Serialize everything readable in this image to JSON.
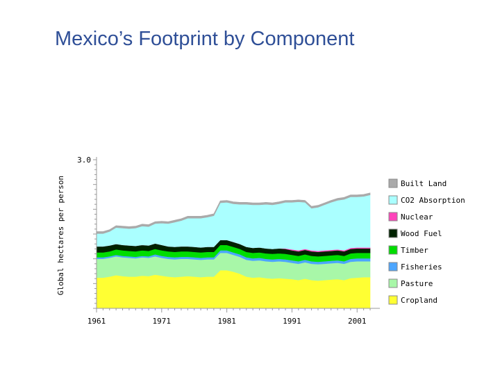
{
  "title": "Mexico’s Footprint by Component",
  "chart_data": {
    "type": "area",
    "stacked": true,
    "title": "Mexico’s Footprint by Component",
    "xlabel": "",
    "ylabel": "Global hectares per person",
    "ylim": [
      0,
      3.0
    ],
    "yticks_labeled": [
      "3.0"
    ],
    "xlim": [
      1961,
      2003
    ],
    "xticks_labeled": [
      "1961",
      "1971",
      "1981",
      "1991",
      "2001"
    ],
    "legend_position": "right",
    "x": [
      1961,
      1962,
      1963,
      1964,
      1965,
      1966,
      1967,
      1968,
      1969,
      1970,
      1971,
      1972,
      1973,
      1974,
      1975,
      1976,
      1977,
      1978,
      1979,
      1980,
      1981,
      1982,
      1983,
      1984,
      1985,
      1986,
      1987,
      1988,
      1989,
      1990,
      1991,
      1992,
      1993,
      1994,
      1995,
      1996,
      1997,
      1998,
      1999,
      2000,
      2001,
      2002,
      2003
    ],
    "series": [
      {
        "name": "Cropland",
        "color": "#ffff33",
        "values": [
          0.62,
          0.62,
          0.64,
          0.67,
          0.65,
          0.64,
          0.64,
          0.66,
          0.65,
          0.68,
          0.66,
          0.64,
          0.63,
          0.64,
          0.65,
          0.64,
          0.63,
          0.64,
          0.64,
          0.77,
          0.77,
          0.74,
          0.7,
          0.64,
          0.62,
          0.63,
          0.61,
          0.6,
          0.61,
          0.6,
          0.59,
          0.57,
          0.6,
          0.57,
          0.56,
          0.57,
          0.58,
          0.59,
          0.57,
          0.61,
          0.62,
          0.63,
          0.63
        ]
      },
      {
        "name": "Pasture",
        "color": "#a8f7a8",
        "values": [
          0.38,
          0.38,
          0.38,
          0.38,
          0.38,
          0.38,
          0.37,
          0.37,
          0.37,
          0.37,
          0.36,
          0.36,
          0.36,
          0.36,
          0.35,
          0.35,
          0.35,
          0.35,
          0.35,
          0.35,
          0.35,
          0.34,
          0.34,
          0.34,
          0.34,
          0.34,
          0.34,
          0.34,
          0.34,
          0.34,
          0.33,
          0.33,
          0.33,
          0.33,
          0.33,
          0.33,
          0.33,
          0.33,
          0.33,
          0.33,
          0.33,
          0.32,
          0.32
        ]
      },
      {
        "name": "Fisheries",
        "color": "#4da6ff",
        "values": [
          0.03,
          0.03,
          0.03,
          0.03,
          0.03,
          0.03,
          0.03,
          0.03,
          0.03,
          0.04,
          0.04,
          0.04,
          0.04,
          0.04,
          0.04,
          0.04,
          0.04,
          0.04,
          0.04,
          0.05,
          0.05,
          0.05,
          0.05,
          0.05,
          0.05,
          0.05,
          0.05,
          0.05,
          0.05,
          0.05,
          0.05,
          0.05,
          0.05,
          0.05,
          0.05,
          0.05,
          0.05,
          0.05,
          0.05,
          0.06,
          0.06,
          0.06,
          0.06
        ]
      },
      {
        "name": "Timber",
        "color": "#00dd00",
        "values": [
          0.1,
          0.1,
          0.1,
          0.11,
          0.11,
          0.11,
          0.11,
          0.11,
          0.11,
          0.11,
          0.11,
          0.11,
          0.11,
          0.11,
          0.11,
          0.11,
          0.11,
          0.11,
          0.11,
          0.11,
          0.11,
          0.11,
          0.11,
          0.11,
          0.11,
          0.11,
          0.11,
          0.11,
          0.11,
          0.11,
          0.11,
          0.11,
          0.11,
          0.11,
          0.11,
          0.11,
          0.11,
          0.11,
          0.11,
          0.11,
          0.11,
          0.11,
          0.11
        ]
      },
      {
        "name": "Wood Fuel",
        "color": "#002200",
        "values": [
          0.12,
          0.12,
          0.12,
          0.11,
          0.11,
          0.11,
          0.11,
          0.11,
          0.11,
          0.11,
          0.11,
          0.1,
          0.1,
          0.1,
          0.1,
          0.1,
          0.1,
          0.1,
          0.1,
          0.1,
          0.1,
          0.1,
          0.1,
          0.1,
          0.1,
          0.1,
          0.1,
          0.1,
          0.1,
          0.1,
          0.09,
          0.09,
          0.09,
          0.09,
          0.09,
          0.09,
          0.09,
          0.09,
          0.09,
          0.09,
          0.09,
          0.09,
          0.09
        ]
      },
      {
        "name": "Nuclear",
        "color": "#ff44bb",
        "values": [
          0,
          0,
          0,
          0,
          0,
          0,
          0,
          0,
          0,
          0,
          0,
          0,
          0,
          0,
          0,
          0,
          0,
          0,
          0,
          0,
          0,
          0,
          0,
          0,
          0,
          0,
          0,
          0,
          0,
          0.01,
          0.02,
          0.02,
          0.02,
          0.02,
          0.02,
          0.02,
          0.02,
          0.02,
          0.02,
          0.02,
          0.02,
          0.02,
          0.02
        ]
      },
      {
        "name": "CO2 Absorption",
        "color": "#aaffff",
        "values": [
          0.26,
          0.26,
          0.28,
          0.33,
          0.34,
          0.34,
          0.36,
          0.38,
          0.38,
          0.4,
          0.44,
          0.46,
          0.5,
          0.52,
          0.57,
          0.58,
          0.59,
          0.6,
          0.63,
          0.75,
          0.76,
          0.77,
          0.8,
          0.86,
          0.87,
          0.86,
          0.89,
          0.89,
          0.9,
          0.93,
          0.95,
          0.98,
          0.94,
          0.85,
          0.88,
          0.92,
          0.96,
          0.99,
          1.03,
          1.03,
          1.02,
          1.03,
          1.06
        ]
      },
      {
        "name": "Built Land",
        "color": "#aaaaaa",
        "values": [
          0.04,
          0.04,
          0.04,
          0.04,
          0.04,
          0.04,
          0.04,
          0.04,
          0.04,
          0.04,
          0.04,
          0.04,
          0.04,
          0.04,
          0.04,
          0.04,
          0.04,
          0.04,
          0.04,
          0.04,
          0.04,
          0.04,
          0.04,
          0.04,
          0.04,
          0.04,
          0.04,
          0.04,
          0.04,
          0.04,
          0.04,
          0.04,
          0.04,
          0.04,
          0.04,
          0.04,
          0.04,
          0.04,
          0.04,
          0.04,
          0.04,
          0.04,
          0.04
        ]
      }
    ]
  }
}
